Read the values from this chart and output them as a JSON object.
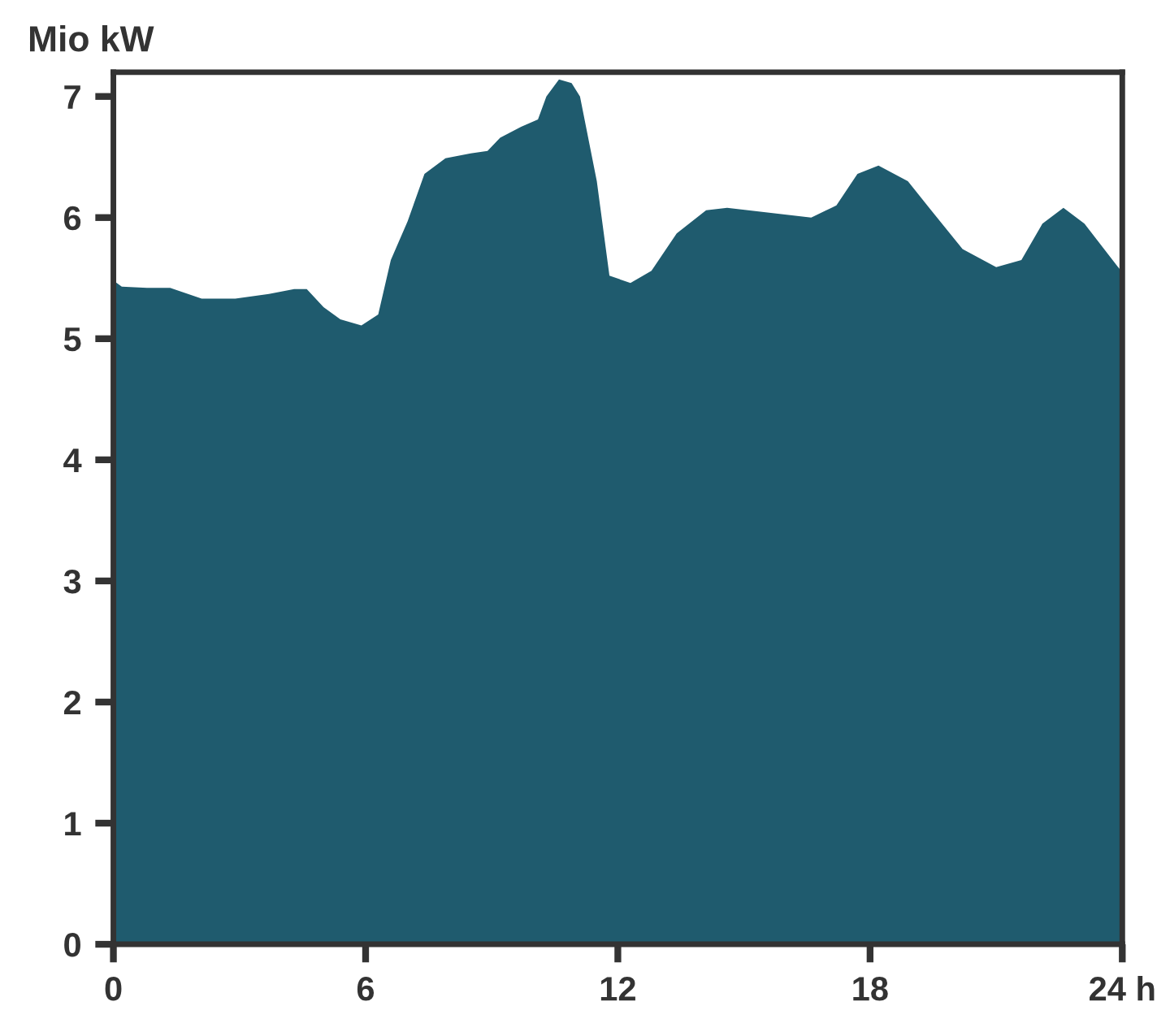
{
  "chart_data": {
    "type": "area",
    "ylabel": "Mio kW",
    "x": [
      0,
      0.2,
      0.8,
      1.35,
      2.1,
      2.9,
      3.7,
      4.3,
      4.6,
      5.0,
      5.4,
      5.9,
      6.3,
      6.6,
      7.0,
      7.4,
      7.9,
      8.5,
      8.9,
      9.2,
      9.7,
      10.1,
      10.3,
      10.6,
      10.9,
      11.1,
      11.5,
      11.8,
      12.3,
      12.8,
      13.4,
      14.1,
      14.6,
      16.6,
      17.2,
      17.7,
      18.2,
      18.9,
      19.5,
      20.2,
      21.0,
      21.6,
      22.1,
      22.6,
      23.1,
      23.9,
      24
    ],
    "series": [
      {
        "color": "#1f5b6e",
        "values": [
          5.48,
          5.43,
          5.42,
          5.42,
          5.33,
          5.33,
          5.37,
          5.41,
          5.41,
          5.26,
          5.16,
          5.11,
          5.2,
          5.65,
          5.97,
          6.36,
          6.49,
          6.53,
          6.55,
          6.66,
          6.75,
          6.81,
          7.0,
          7.14,
          7.11,
          7.0,
          6.3,
          5.52,
          5.46,
          5.56,
          5.87,
          6.06,
          6.08,
          6.0,
          6.1,
          6.36,
          6.43,
          6.3,
          6.04,
          5.74,
          5.59,
          5.65,
          5.95,
          6.08,
          5.95,
          5.59,
          5.55
        ]
      }
    ],
    "xlim": [
      0,
      24
    ],
    "xticks": [
      0,
      6,
      12,
      18,
      {
        "value": 24,
        "label": "24 h"
      }
    ],
    "ylim": [
      0,
      7.2
    ],
    "yticks": [
      0,
      1,
      2,
      3,
      4,
      5,
      6,
      7
    ],
    "grid": false,
    "legend": false
  }
}
